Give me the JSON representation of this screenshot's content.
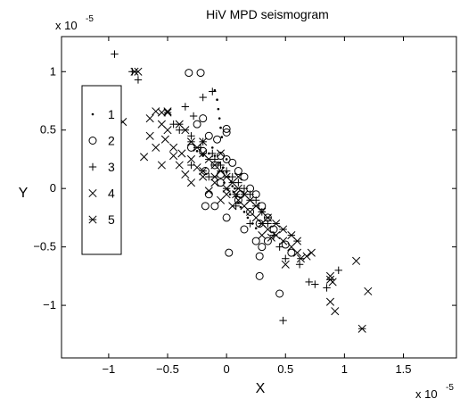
{
  "chart_data": {
    "type": "scatter",
    "title": "HiV MPD seismogram",
    "xlabel": "X",
    "ylabel": "Y",
    "x_multiplier_label": "x 10",
    "x_multiplier_exp": "-5",
    "y_multiplier_label": "x 10",
    "y_multiplier_exp": "-5",
    "xlim": [
      -1.4,
      1.95
    ],
    "ylim": [
      -1.45,
      1.3
    ],
    "xticks": [
      -1,
      -0.5,
      0,
      0.5,
      1,
      1.5
    ],
    "xtick_labels": [
      "−1",
      "−0.5",
      "0",
      "0.5",
      "1",
      "1.5"
    ],
    "yticks": [
      -1,
      -0.5,
      0,
      0.5,
      1
    ],
    "ytick_labels": [
      "−1",
      "−0.5",
      "0",
      "0.5",
      "1"
    ],
    "grid": false,
    "legend_position": "left",
    "legend_entries": [
      "1",
      "2",
      "3",
      "4",
      "5"
    ],
    "series": [
      {
        "name": "1",
        "marker": "dot",
        "points": [
          [
            -0.1,
            0.84
          ],
          [
            -0.08,
            0.76
          ],
          [
            -0.07,
            0.68
          ],
          [
            -0.06,
            0.6
          ],
          [
            -0.05,
            0.52
          ],
          [
            -0.04,
            0.44
          ],
          [
            -0.12,
            0.35
          ],
          [
            -0.1,
            0.28
          ],
          [
            -0.06,
            0.22
          ],
          [
            -0.03,
            0.18
          ],
          [
            0.0,
            0.14
          ],
          [
            0.02,
            0.1
          ],
          [
            0.04,
            0.06
          ],
          [
            0.05,
            0.02
          ],
          [
            0.06,
            -0.03
          ],
          [
            0.08,
            -0.07
          ],
          [
            0.1,
            -0.12
          ],
          [
            0.12,
            -0.16
          ],
          [
            0.15,
            -0.2
          ],
          [
            0.18,
            -0.25
          ],
          [
            -0.15,
            0.3
          ],
          [
            -0.2,
            0.28
          ],
          [
            -0.02,
            0.05
          ],
          [
            0.01,
            -0.01
          ],
          [
            0.03,
            -0.05
          ],
          [
            0.22,
            -0.3
          ],
          [
            0.25,
            -0.34
          ],
          [
            -0.25,
            0.32
          ],
          [
            0.0,
            0.25
          ],
          [
            0.07,
            0.0
          ]
        ]
      },
      {
        "name": "2",
        "marker": "circle",
        "points": [
          [
            -0.32,
            0.99
          ],
          [
            -0.22,
            0.99
          ],
          [
            0.0,
            0.51
          ],
          [
            0.0,
            0.48
          ],
          [
            -0.2,
            0.6
          ],
          [
            -0.25,
            0.55
          ],
          [
            -0.15,
            0.45
          ],
          [
            -0.08,
            0.42
          ],
          [
            -0.3,
            0.35
          ],
          [
            -0.2,
            0.32
          ],
          [
            -0.05,
            0.28
          ],
          [
            0.0,
            0.25
          ],
          [
            0.05,
            0.22
          ],
          [
            -0.1,
            0.2
          ],
          [
            -0.18,
            0.15
          ],
          [
            0.1,
            0.15
          ],
          [
            0.15,
            0.1
          ],
          [
            -0.05,
            0.05
          ],
          [
            0.2,
            0.0
          ],
          [
            -0.15,
            -0.05
          ],
          [
            0.25,
            -0.05
          ],
          [
            0.1,
            -0.1
          ],
          [
            -0.1,
            -0.15
          ],
          [
            -0.18,
            -0.15
          ],
          [
            0.3,
            -0.15
          ],
          [
            0.2,
            -0.2
          ],
          [
            0.0,
            -0.25
          ],
          [
            0.35,
            -0.25
          ],
          [
            0.28,
            -0.3
          ],
          [
            0.15,
            -0.35
          ],
          [
            0.4,
            -0.35
          ],
          [
            0.25,
            -0.45
          ],
          [
            0.35,
            -0.45
          ],
          [
            0.3,
            -0.5
          ],
          [
            0.02,
            -0.55
          ],
          [
            0.28,
            -0.58
          ],
          [
            0.5,
            -0.48
          ],
          [
            0.55,
            -0.55
          ],
          [
            0.28,
            -0.75
          ],
          [
            0.45,
            -0.9
          ],
          [
            0.12,
            -0.05
          ],
          [
            -0.05,
            0.12
          ]
        ]
      },
      {
        "name": "3",
        "marker": "plus",
        "points": [
          [
            -0.95,
            1.15
          ],
          [
            -0.8,
            1.0
          ],
          [
            -0.75,
            0.93
          ],
          [
            -0.12,
            0.83
          ],
          [
            -0.2,
            0.78
          ],
          [
            -0.35,
            0.7
          ],
          [
            -0.28,
            0.62
          ],
          [
            -0.45,
            0.55
          ],
          [
            -0.4,
            0.5
          ],
          [
            -0.3,
            0.45
          ],
          [
            -0.2,
            0.4
          ],
          [
            -0.22,
            0.35
          ],
          [
            -0.12,
            0.3
          ],
          [
            -0.1,
            0.25
          ],
          [
            -0.05,
            0.2
          ],
          [
            0.0,
            0.15
          ],
          [
            0.05,
            0.1
          ],
          [
            0.1,
            0.05
          ],
          [
            0.15,
            0.0
          ],
          [
            0.2,
            -0.05
          ],
          [
            0.25,
            -0.1
          ],
          [
            0.3,
            -0.2
          ],
          [
            0.35,
            -0.3
          ],
          [
            0.4,
            -0.4
          ],
          [
            0.45,
            -0.5
          ],
          [
            0.5,
            -0.6
          ],
          [
            0.62,
            -0.65
          ],
          [
            0.7,
            -0.8
          ],
          [
            0.75,
            -0.82
          ],
          [
            0.85,
            -0.85
          ],
          [
            0.95,
            -0.7
          ],
          [
            0.48,
            -1.13
          ],
          [
            -0.15,
            0.1
          ],
          [
            -0.3,
            0.2
          ],
          [
            0.2,
            -0.3
          ],
          [
            0.08,
            -0.15
          ]
        ]
      },
      {
        "name": "4",
        "marker": "x",
        "points": [
          [
            -0.75,
            1.0
          ],
          [
            -0.88,
            0.57
          ],
          [
            -0.6,
            0.66
          ],
          [
            -0.55,
            0.65
          ],
          [
            -0.5,
            0.66
          ],
          [
            -0.65,
            0.6
          ],
          [
            -0.55,
            0.55
          ],
          [
            -0.5,
            0.5
          ],
          [
            -0.65,
            0.45
          ],
          [
            -0.52,
            0.42
          ],
          [
            -0.6,
            0.35
          ],
          [
            -0.45,
            0.35
          ],
          [
            -0.38,
            0.3
          ],
          [
            -0.7,
            0.27
          ],
          [
            -0.45,
            0.28
          ],
          [
            -0.3,
            0.25
          ],
          [
            -0.55,
            0.2
          ],
          [
            -0.4,
            0.2
          ],
          [
            -0.25,
            0.18
          ],
          [
            -0.35,
            0.12
          ],
          [
            -0.2,
            0.1
          ],
          [
            -0.3,
            0.05
          ],
          [
            -0.1,
            0.05
          ],
          [
            -0.15,
            -0.02
          ],
          [
            0.0,
            -0.05
          ],
          [
            -0.05,
            -0.1
          ],
          [
            0.1,
            -0.1
          ],
          [
            0.05,
            -0.15
          ],
          [
            0.15,
            -0.15
          ],
          [
            0.2,
            -0.2
          ],
          [
            0.25,
            -0.25
          ],
          [
            0.3,
            -0.3
          ],
          [
            0.35,
            -0.35
          ],
          [
            0.42,
            -0.4
          ],
          [
            0.48,
            -0.45
          ],
          [
            0.55,
            -0.5
          ],
          [
            0.6,
            -0.55
          ],
          [
            0.72,
            -0.55
          ],
          [
            0.88,
            -0.75
          ],
          [
            0.9,
            -0.8
          ],
          [
            0.88,
            -0.97
          ],
          [
            0.92,
            -1.05
          ],
          [
            1.1,
            -0.62
          ],
          [
            1.2,
            -0.88
          ],
          [
            0.5,
            -0.65
          ],
          [
            0.68,
            -0.58
          ],
          [
            0.3,
            -0.4
          ],
          [
            0.38,
            -0.42
          ],
          [
            -0.05,
            0.3
          ],
          [
            0.1,
            0.1
          ],
          [
            0.2,
            -0.1
          ],
          [
            -0.2,
            0.4
          ]
        ]
      },
      {
        "name": "5",
        "marker": "asterisk",
        "points": [
          [
            -0.78,
            1.0
          ],
          [
            -0.98,
            0.8
          ],
          [
            -0.5,
            0.65
          ],
          [
            -0.4,
            0.55
          ],
          [
            -0.35,
            0.5
          ],
          [
            -0.3,
            0.4
          ],
          [
            -0.25,
            0.35
          ],
          [
            -0.2,
            0.3
          ],
          [
            -0.15,
            0.25
          ],
          [
            -0.1,
            0.2
          ],
          [
            -0.05,
            0.15
          ],
          [
            0.0,
            0.1
          ],
          [
            0.05,
            0.05
          ],
          [
            0.1,
            0.0
          ],
          [
            0.15,
            -0.05
          ],
          [
            0.2,
            -0.1
          ],
          [
            0.25,
            -0.15
          ],
          [
            0.3,
            -0.2
          ],
          [
            0.35,
            -0.25
          ],
          [
            0.42,
            -0.3
          ],
          [
            0.48,
            -0.35
          ],
          [
            0.55,
            -0.4
          ],
          [
            0.6,
            -0.45
          ],
          [
            0.63,
            -0.6
          ],
          [
            0.3,
            -0.3
          ],
          [
            -0.1,
            0.1
          ],
          [
            0.0,
            0.0
          ],
          [
            0.08,
            -0.05
          ],
          [
            -0.2,
            0.15
          ],
          [
            0.88,
            -0.78
          ],
          [
            1.15,
            -1.2
          ]
        ]
      }
    ]
  }
}
